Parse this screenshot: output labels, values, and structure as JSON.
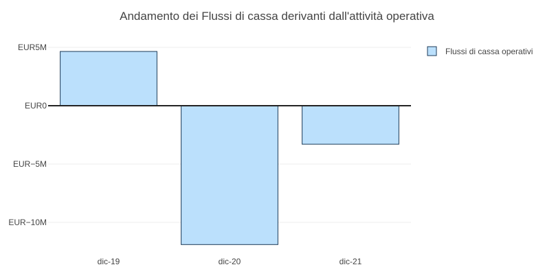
{
  "chart_data": {
    "type": "bar",
    "title": "Andamento dei Flussi di cassa derivanti dall'attività operativa",
    "categories": [
      "dic-19",
      "dic-20",
      "dic-21"
    ],
    "series": [
      {
        "name": "Flussi di cassa operativi",
        "values": [
          4.65,
          -11.9,
          -3.3
        ]
      }
    ],
    "unit": "M EUR",
    "ylim": [
      -12.5,
      5.5
    ],
    "yticks": [
      {
        "value": 5,
        "label": "EUR5M"
      },
      {
        "value": 0,
        "label": "EUR0"
      },
      {
        "value": -5,
        "label": "EUR−5M"
      },
      {
        "value": -10,
        "label": "EUR−10M"
      }
    ],
    "grid": true,
    "legend_position": "top-right",
    "colors": {
      "bar_fill": "#bbe0fc",
      "bar_stroke": "#1c3a57",
      "grid": "#eeeeee",
      "zero_line": "#222222",
      "text": "#444444"
    }
  }
}
